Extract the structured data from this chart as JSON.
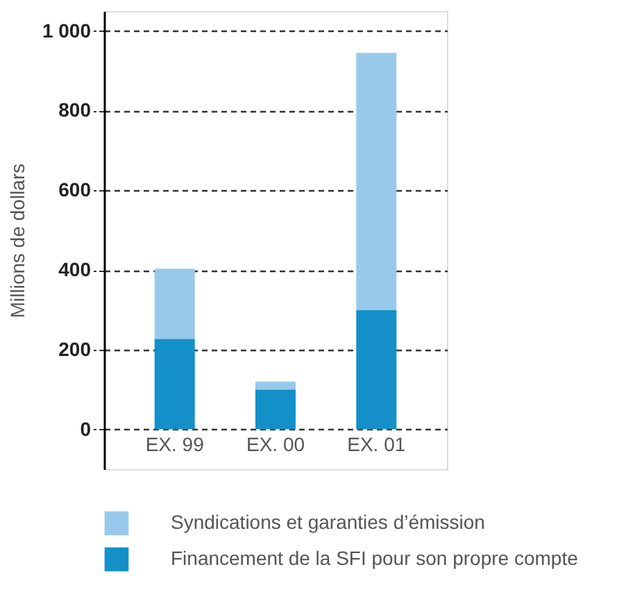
{
  "chart_data": {
    "type": "bar",
    "stacked": true,
    "ylabel": "Millions de dollars",
    "categories": [
      "EX. 99",
      "EX. 00",
      "EX. 01"
    ],
    "series": [
      {
        "name": "Financement de la SFI pour son propre compte",
        "color": "#1490c8",
        "values": [
          227,
          100,
          300
        ]
      },
      {
        "name": "Syndications et garanties d’émission",
        "color": "#98c9eb",
        "values": [
          176,
          20,
          645
        ]
      }
    ],
    "ylim": [
      -100,
      1050
    ],
    "yticks": [
      0,
      200,
      400,
      600,
      800,
      {
        "value": 1000,
        "label": "1 000"
      }
    ],
    "grid": "y",
    "legend": "bottom"
  }
}
